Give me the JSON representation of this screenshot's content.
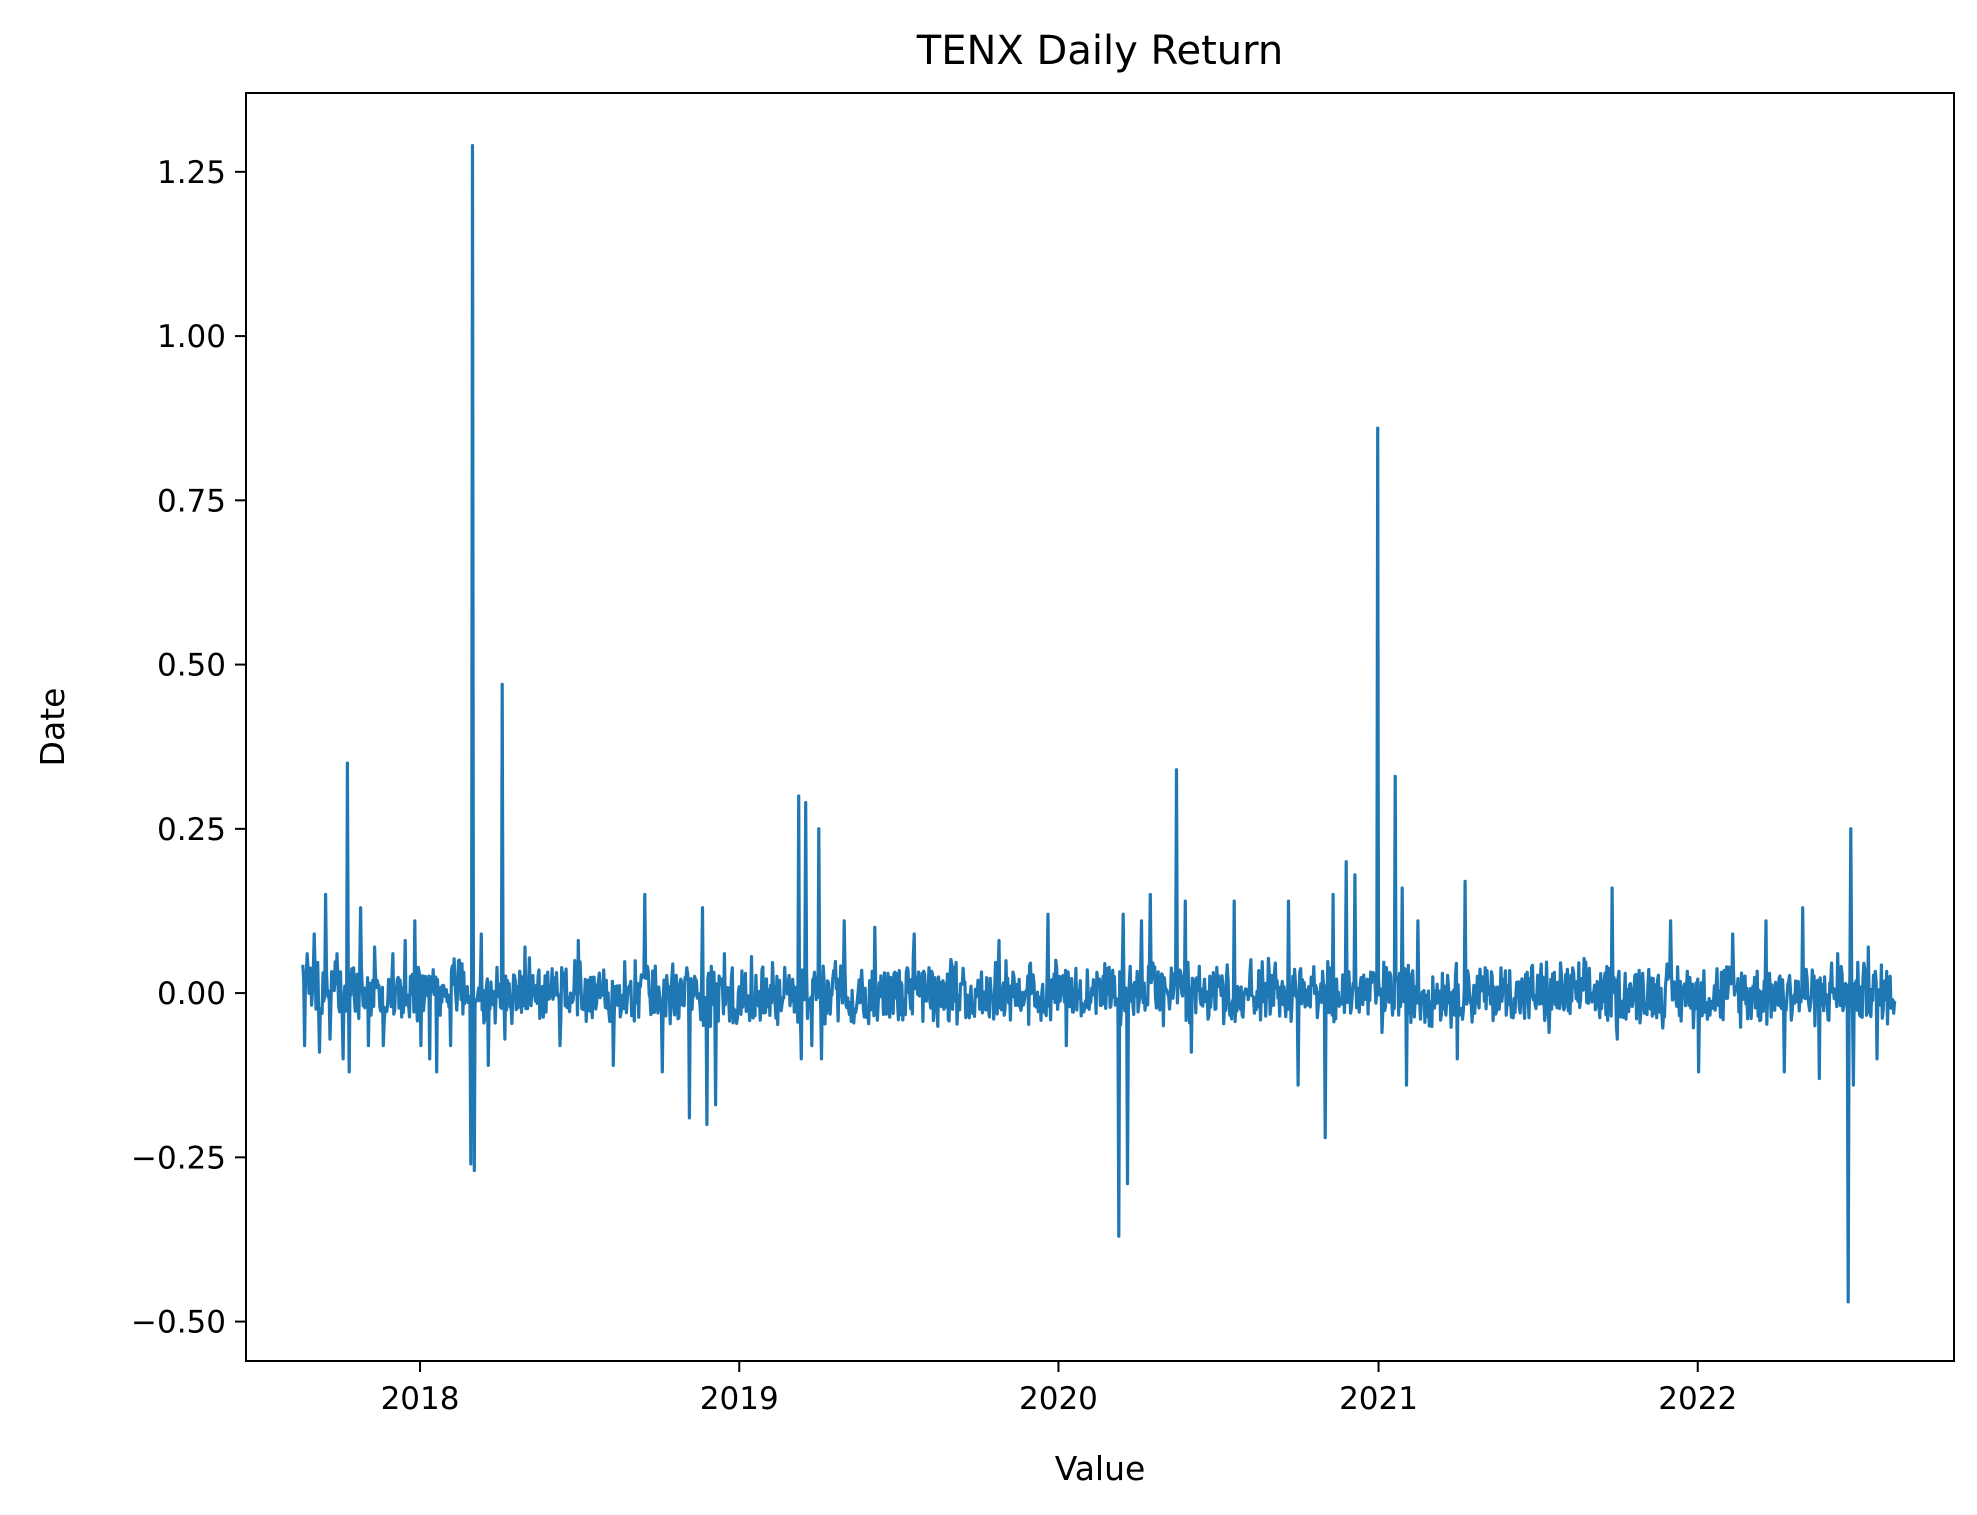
{
  "chart_data": {
    "type": "line",
    "title": "TENX Daily Return",
    "xlabel": "Value",
    "ylabel": "Date",
    "line_color": "#1f77b4",
    "grid": false,
    "legend": "none",
    "xlim": [
      "2017-06-16",
      "2022-10-21"
    ],
    "ylim": [
      -0.56,
      1.37
    ],
    "x_ticks": [
      "2018-01-01",
      "2019-01-01",
      "2020-01-01",
      "2021-01-01",
      "2022-01-01"
    ],
    "x_tick_labels": [
      "2018",
      "2019",
      "2020",
      "2021",
      "2022"
    ],
    "y_ticks": [
      -0.5,
      -0.25,
      0.0,
      0.25,
      0.5,
      0.75,
      1.0,
      1.25
    ],
    "y_tick_labels": [
      "−0.50",
      "−0.25",
      "0.00",
      "0.25",
      "0.50",
      "0.75",
      "1.00",
      "1.25"
    ],
    "series": [
      {
        "x_start": "2017-08-20",
        "x_end": "2022-08-15",
        "baseline": 0.0,
        "noise_amplitude": 0.04,
        "spikes": [
          {
            "date": "2017-08-22",
            "value": -0.08
          },
          {
            "date": "2017-08-25",
            "value": 0.06
          },
          {
            "date": "2017-09-02",
            "value": 0.09
          },
          {
            "date": "2017-09-08",
            "value": -0.09
          },
          {
            "date": "2017-09-15",
            "value": 0.15
          },
          {
            "date": "2017-09-20",
            "value": -0.07
          },
          {
            "date": "2017-09-28",
            "value": 0.06
          },
          {
            "date": "2017-10-05",
            "value": -0.1
          },
          {
            "date": "2017-10-10",
            "value": 0.35
          },
          {
            "date": "2017-10-12",
            "value": -0.12
          },
          {
            "date": "2017-10-25",
            "value": 0.13
          },
          {
            "date": "2017-11-03",
            "value": -0.08
          },
          {
            "date": "2017-11-10",
            "value": 0.07
          },
          {
            "date": "2017-11-20",
            "value": -0.08
          },
          {
            "date": "2017-12-01",
            "value": 0.06
          },
          {
            "date": "2017-12-15",
            "value": 0.08
          },
          {
            "date": "2017-12-26",
            "value": 0.11
          },
          {
            "date": "2018-01-02",
            "value": -0.08
          },
          {
            "date": "2018-01-12",
            "value": -0.1
          },
          {
            "date": "2018-01-20",
            "value": -0.12
          },
          {
            "date": "2018-02-05",
            "value": -0.08
          },
          {
            "date": "2018-02-15",
            "value": 0.05
          },
          {
            "date": "2018-02-28",
            "value": -0.26
          },
          {
            "date": "2018-03-02",
            "value": 1.29
          },
          {
            "date": "2018-03-04",
            "value": -0.27
          },
          {
            "date": "2018-03-12",
            "value": 0.09
          },
          {
            "date": "2018-03-20",
            "value": -0.11
          },
          {
            "date": "2018-04-05",
            "value": 0.47
          },
          {
            "date": "2018-04-08",
            "value": -0.07
          },
          {
            "date": "2018-05-01",
            "value": 0.07
          },
          {
            "date": "2018-06-10",
            "value": -0.08
          },
          {
            "date": "2018-07-01",
            "value": 0.08
          },
          {
            "date": "2018-08-10",
            "value": -0.11
          },
          {
            "date": "2018-09-15",
            "value": 0.15
          },
          {
            "date": "2018-10-05",
            "value": -0.12
          },
          {
            "date": "2018-11-05",
            "value": -0.19
          },
          {
            "date": "2018-11-20",
            "value": 0.13
          },
          {
            "date": "2018-11-25",
            "value": -0.2
          },
          {
            "date": "2018-12-05",
            "value": -0.17
          },
          {
            "date": "2018-12-15",
            "value": 0.06
          },
          {
            "date": "2019-03-10",
            "value": 0.3
          },
          {
            "date": "2019-03-13",
            "value": -0.1
          },
          {
            "date": "2019-03-18",
            "value": 0.29
          },
          {
            "date": "2019-03-25",
            "value": -0.08
          },
          {
            "date": "2019-04-02",
            "value": 0.25
          },
          {
            "date": "2019-04-05",
            "value": -0.1
          },
          {
            "date": "2019-05-01",
            "value": 0.11
          },
          {
            "date": "2019-06-05",
            "value": 0.1
          },
          {
            "date": "2019-07-20",
            "value": 0.09
          },
          {
            "date": "2019-10-25",
            "value": 0.08
          },
          {
            "date": "2019-12-20",
            "value": 0.12
          },
          {
            "date": "2020-01-10",
            "value": -0.08
          },
          {
            "date": "2020-03-10",
            "value": -0.37
          },
          {
            "date": "2020-03-15",
            "value": 0.12
          },
          {
            "date": "2020-03-20",
            "value": -0.29
          },
          {
            "date": "2020-04-05",
            "value": 0.11
          },
          {
            "date": "2020-04-15",
            "value": 0.15
          },
          {
            "date": "2020-05-15",
            "value": 0.34
          },
          {
            "date": "2020-05-25",
            "value": 0.14
          },
          {
            "date": "2020-06-01",
            "value": -0.09
          },
          {
            "date": "2020-07-20",
            "value": 0.14
          },
          {
            "date": "2020-09-20",
            "value": 0.14
          },
          {
            "date": "2020-10-01",
            "value": -0.14
          },
          {
            "date": "2020-11-01",
            "value": -0.22
          },
          {
            "date": "2020-11-10",
            "value": 0.15
          },
          {
            "date": "2020-11-25",
            "value": 0.2
          },
          {
            "date": "2020-12-05",
            "value": 0.18
          },
          {
            "date": "2020-12-31",
            "value": 0.86
          },
          {
            "date": "2021-01-05",
            "value": -0.06
          },
          {
            "date": "2021-01-20",
            "value": 0.33
          },
          {
            "date": "2021-01-28",
            "value": 0.16
          },
          {
            "date": "2021-02-02",
            "value": -0.14
          },
          {
            "date": "2021-02-15",
            "value": 0.11
          },
          {
            "date": "2021-04-01",
            "value": -0.1
          },
          {
            "date": "2021-04-10",
            "value": 0.17
          },
          {
            "date": "2021-07-15",
            "value": -0.06
          },
          {
            "date": "2021-09-25",
            "value": 0.16
          },
          {
            "date": "2021-10-01",
            "value": -0.07
          },
          {
            "date": "2021-12-01",
            "value": 0.11
          },
          {
            "date": "2022-01-02",
            "value": -0.12
          },
          {
            "date": "2022-02-10",
            "value": 0.09
          },
          {
            "date": "2022-03-20",
            "value": 0.11
          },
          {
            "date": "2022-04-10",
            "value": -0.12
          },
          {
            "date": "2022-05-01",
            "value": 0.13
          },
          {
            "date": "2022-05-20",
            "value": -0.13
          },
          {
            "date": "2022-06-10",
            "value": 0.06
          },
          {
            "date": "2022-06-22",
            "value": -0.47
          },
          {
            "date": "2022-06-25",
            "value": 0.25
          },
          {
            "date": "2022-06-28",
            "value": -0.14
          },
          {
            "date": "2022-07-15",
            "value": 0.07
          },
          {
            "date": "2022-07-25",
            "value": -0.1
          }
        ]
      }
    ]
  }
}
